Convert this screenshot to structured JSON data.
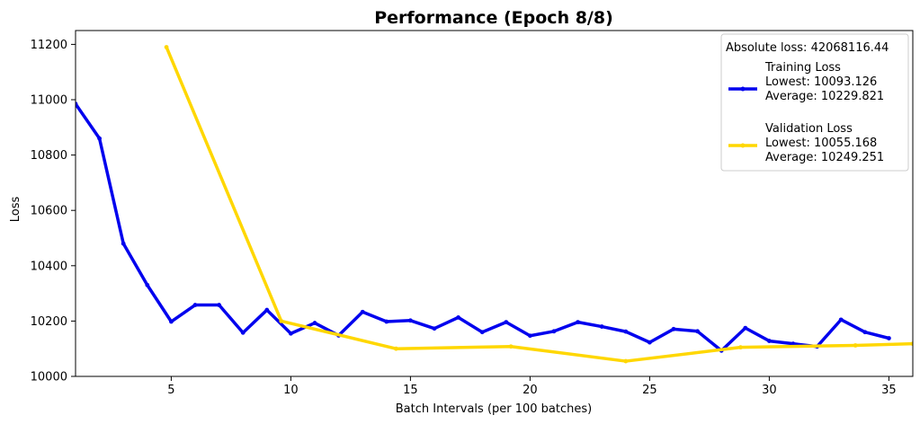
{
  "chart_data": {
    "type": "line",
    "title": "Performance (Epoch 8/8)",
    "xlabel": "Batch Intervals (per 100 batches)",
    "ylabel": "Loss",
    "xlim": [
      1,
      36
    ],
    "ylim": [
      10000,
      11250
    ],
    "xticks": [
      5,
      10,
      15,
      20,
      25,
      30,
      35
    ],
    "yticks": [
      10000,
      10200,
      10400,
      10600,
      10800,
      11000,
      11200
    ],
    "grid": false,
    "legend": {
      "placement": "top-right",
      "title": "Absolute loss: 42068116.44",
      "entries": [
        {
          "name": "Training Loss",
          "lowest": "Lowest: 10093.126",
          "average": "Average: 10229.821"
        },
        {
          "name": "Validation Loss",
          "lowest": "Lowest: 10055.168",
          "average": "Average: 10249.251"
        }
      ]
    },
    "series": [
      {
        "name": "Training Loss",
        "color": "#0000ee",
        "x": [
          1,
          2,
          3,
          4,
          5,
          6,
          7,
          8,
          9,
          10,
          11,
          12,
          13,
          14,
          15,
          16,
          17,
          18,
          19,
          20,
          21,
          22,
          23,
          24,
          25,
          26,
          27,
          28,
          29,
          30,
          31,
          32,
          33,
          34,
          35
        ],
        "values": [
          10985,
          10860,
          10480,
          10330,
          10198,
          10258,
          10258,
          10158,
          10240,
          10155,
          10193,
          10148,
          10233,
          10198,
          10202,
          10173,
          10213,
          10160,
          10196,
          10147,
          10163,
          10196,
          10180,
          10162,
          10123,
          10171,
          10163,
          10093,
          10175,
          10128,
          10118,
          10108,
          10205,
          10160,
          10138
        ]
      },
      {
        "name": "Validation Loss",
        "color": "#ffd700",
        "x": [
          4.8,
          9.6,
          14.4,
          19.2,
          24.0,
          28.8,
          33.6,
          36.0
        ],
        "values": [
          11190,
          10200,
          10100,
          10108,
          10055,
          10105,
          10112,
          10118
        ]
      }
    ]
  }
}
